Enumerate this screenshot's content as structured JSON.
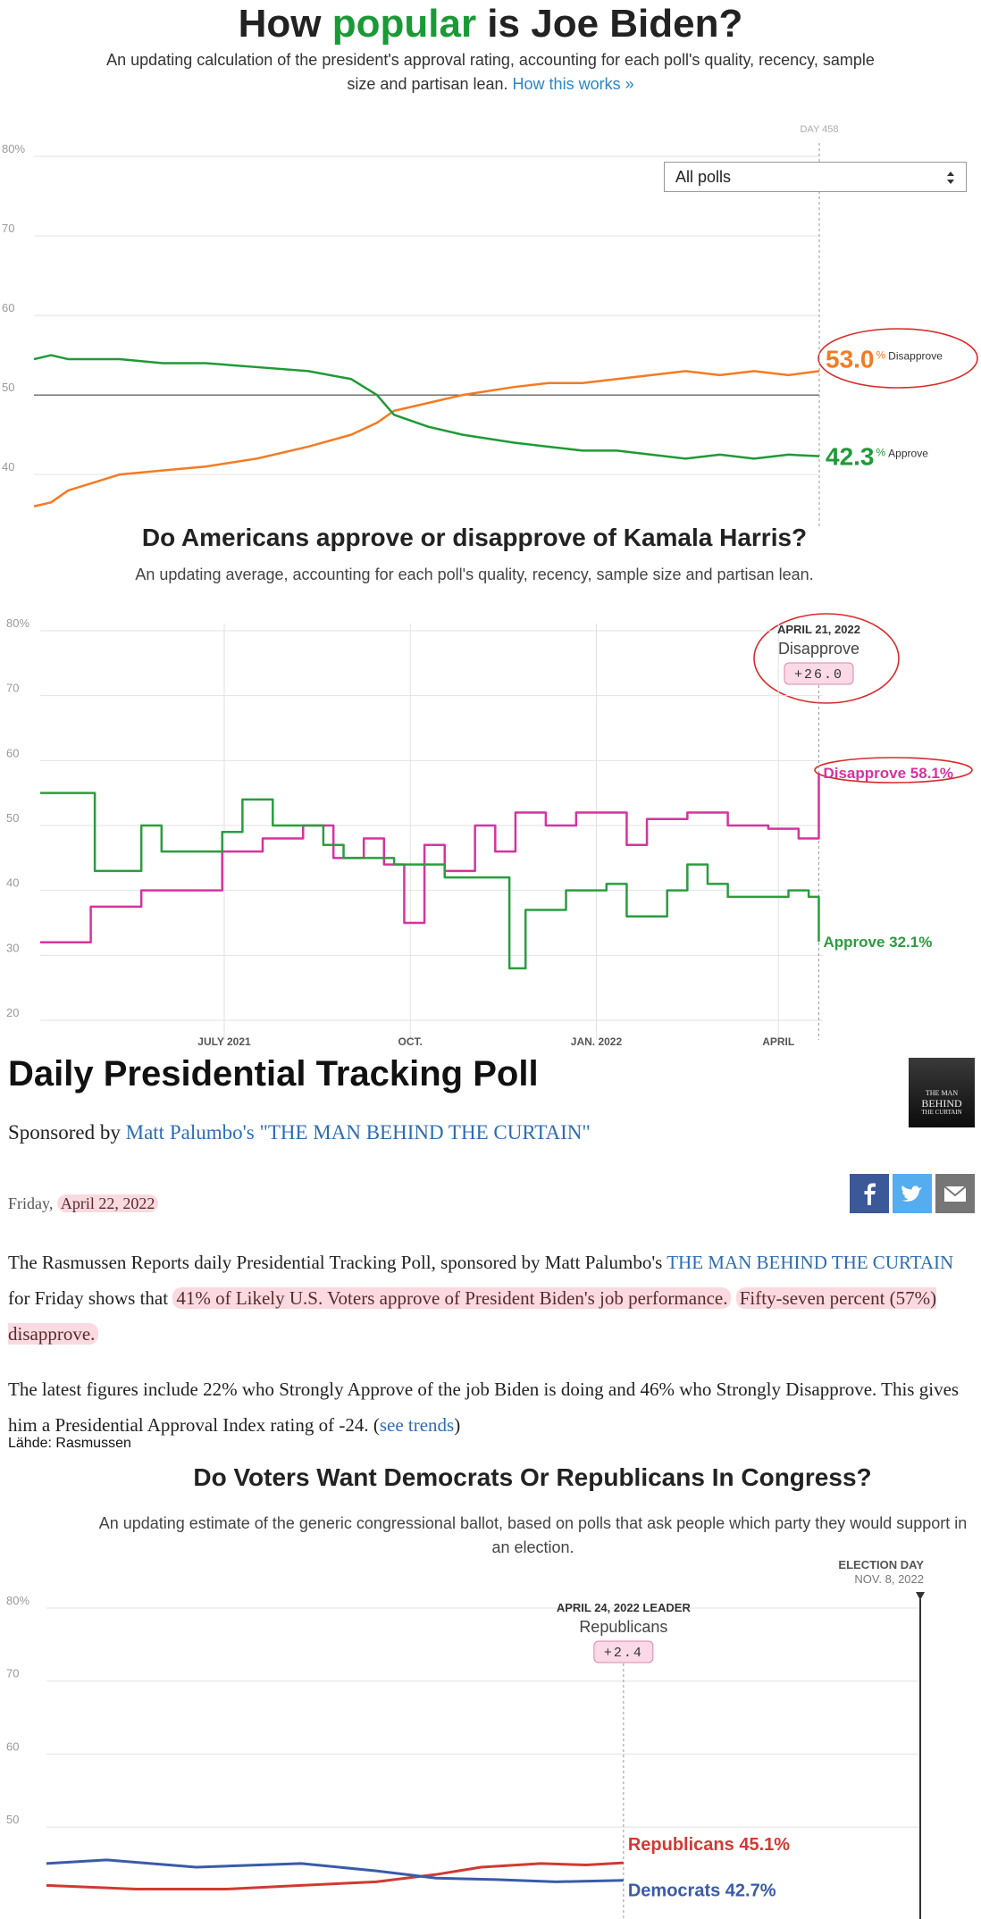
{
  "chart_data": [
    {
      "type": "line",
      "title": [
        "How",
        "popular",
        "is Joe Biden?"
      ],
      "subtitle": "An updating calculation of the president's approval rating, accounting for each poll's quality, recency, sample size and partisan lean.",
      "link": "How this works »",
      "filter": "All polls",
      "annotation": {
        "x": 458,
        "date": "DAY 458"
      },
      "xlim": [
        0,
        458
      ],
      "ylim": [
        33.5,
        80
      ],
      "yticks": [
        {
          "value": 80,
          "label": "80%"
        },
        70,
        60,
        50,
        40
      ],
      "hline": 50,
      "grid": true,
      "series": [
        {
          "name": "Disapprove",
          "color": "#f47b20",
          "end_label": "53.0",
          "end_unit": "%",
          "x": [
            0,
            10,
            20,
            35,
            50,
            75,
            100,
            130,
            160,
            185,
            200,
            210,
            230,
            250,
            280,
            300,
            320,
            340,
            360,
            380,
            400,
            420,
            440,
            458
          ],
          "values": [
            36,
            36.5,
            38,
            39,
            40,
            40.5,
            41,
            42,
            43.5,
            45,
            46.5,
            48,
            49,
            50,
            51,
            51.5,
            51.5,
            52,
            52.5,
            53,
            52.5,
            53,
            52.5,
            53.0
          ]
        },
        {
          "name": "Approve",
          "color": "#1f9a37",
          "end_label": "42.3",
          "end_unit": "%",
          "x": [
            0,
            10,
            20,
            35,
            50,
            75,
            100,
            130,
            160,
            185,
            200,
            210,
            230,
            250,
            280,
            300,
            320,
            340,
            360,
            380,
            400,
            420,
            440,
            458
          ],
          "values": [
            54.5,
            55,
            54.5,
            54.5,
            54.5,
            54,
            54,
            53.5,
            53,
            52,
            50,
            47.5,
            46,
            45,
            44,
            43.5,
            43,
            43,
            42.5,
            42,
            42.5,
            42,
            42.5,
            42.3
          ]
        }
      ]
    },
    {
      "type": "line",
      "title": "Do Americans approve or disapprove of Kamala Harris?",
      "subtitle": "An updating average, accounting for each poll's quality, recency, sample size and partisan lean.",
      "annotation": {
        "x": 385,
        "date": "APRIL 21, 2022",
        "leader": "Disapprove",
        "margin": "+26.0"
      },
      "step": true,
      "xlim": [
        0,
        387
      ],
      "xticks": [
        {
          "value": 91,
          "label": "JULY 2021"
        },
        {
          "value": 183,
          "label": "OCT."
        },
        {
          "value": 275,
          "label": "JAN. 2022"
        },
        {
          "value": 365,
          "label": "APRIL"
        }
      ],
      "ylim": [
        20,
        80
      ],
      "yticks": [
        {
          "value": 80,
          "label": "80%"
        },
        70,
        60,
        50,
        40,
        30,
        20
      ],
      "grid": true,
      "series": [
        {
          "name": "Disapprove",
          "color": "#d6339f",
          "end_label": "Disapprove 58.1%",
          "x": [
            0,
            24,
            25,
            50,
            90,
            110,
            130,
            145,
            160,
            170,
            180,
            190,
            200,
            215,
            225,
            235,
            250,
            265,
            290,
            300,
            320,
            340,
            360,
            375,
            385
          ],
          "values": [
            32,
            32,
            37.5,
            40,
            46,
            48,
            50,
            45,
            48,
            44,
            35,
            47,
            43,
            50,
            46,
            52,
            50,
            52,
            47,
            51,
            52,
            50,
            49.5,
            48,
            58.1
          ]
        },
        {
          "name": "Approve",
          "color": "#2a9d3f",
          "end_label": "Approve 32.1%",
          "x": [
            0,
            24,
            27,
            40,
            50,
            60,
            75,
            90,
            100,
            115,
            140,
            150,
            175,
            200,
            228,
            232,
            240,
            260,
            280,
            290,
            310,
            320,
            330,
            340,
            370,
            380,
            385
          ],
          "values": [
            55,
            55,
            43,
            43,
            50,
            46,
            46,
            49,
            54,
            50,
            47,
            45,
            44,
            42,
            42,
            28,
            37,
            40,
            41,
            36,
            40,
            44,
            41,
            39,
            40,
            39,
            32.1
          ]
        }
      ]
    },
    {
      "type": "line",
      "title": "Do Voters Want Democrats Or Republicans In Congress?",
      "subtitle": "An updating estimate of the generic congressional ballot, based on polls that ask people which party they would support in an election.",
      "annotation": {
        "x": 385,
        "date": "APRIL 24, 2022 LEADER",
        "leader": "Republicans",
        "margin": "+2.4"
      },
      "markers": [
        {
          "x": 583,
          "label": "ELECTION DAY",
          "date": "NOV. 8, 2022"
        }
      ],
      "xlim": [
        0,
        583
      ],
      "ylim": [
        37.4,
        80
      ],
      "yticks": [
        {
          "value": 80,
          "label": "80%"
        },
        70,
        60,
        50
      ],
      "grid": true,
      "series": [
        {
          "name": "Republicans",
          "color": "#d13a32",
          "end_label": "Republicans 45.1%",
          "x": [
            0,
            60,
            120,
            170,
            220,
            260,
            290,
            330,
            360,
            385
          ],
          "values": [
            42,
            41.5,
            41.5,
            42,
            42.5,
            43.5,
            44.5,
            45,
            44.8,
            45.1
          ]
        },
        {
          "name": "Democrats",
          "color": "#3a5ba9",
          "end_label": "Democrats 42.7%",
          "x": [
            0,
            40,
            100,
            170,
            220,
            260,
            300,
            340,
            385
          ],
          "values": [
            45,
            45.5,
            44.5,
            45,
            44,
            43,
            42.8,
            42.5,
            42.7
          ]
        }
      ]
    }
  ],
  "article": {
    "title": "Daily Presidential Tracking Poll",
    "book_cover": [
      "THE MAN",
      "BEHIND",
      "THE CURTAIN"
    ],
    "sponsor_prefix": "Sponsored by",
    "sponsor_link": "Matt Palumbo's \"THE MAN BEHIND THE CURTAIN\"",
    "day": "Friday,",
    "date": "April 22, 2022",
    "paragraphs": [
      [
        {
          "text": "The Rasmussen Reports daily Presidential Tracking Poll, sponsored by Matt Palumbo's ",
          "style": "plain"
        },
        {
          "text": "THE MAN BEHIND THE CURTAIN",
          "style": "link"
        },
        {
          "text": " for Friday shows that ",
          "style": "plain"
        },
        {
          "text": "41% of Likely U.S. Voters approve of President Biden's job performance.",
          "style": "highlight"
        },
        {
          "text": " ",
          "style": "plain"
        },
        {
          "text": "Fifty-seven percent (57%) disapprove.",
          "style": "highlight"
        }
      ],
      [
        {
          "text": "The latest figures include 22% who Strongly Approve of the job Biden is doing and 46% who Strongly Disapprove. This gives him a Presidential Approval Index rating of -24. (",
          "style": "plain"
        },
        {
          "text": "see trends",
          "style": "link"
        },
        {
          "text": ")",
          "style": "plain"
        }
      ]
    ],
    "source": "Lähde: Rasmussen"
  }
}
